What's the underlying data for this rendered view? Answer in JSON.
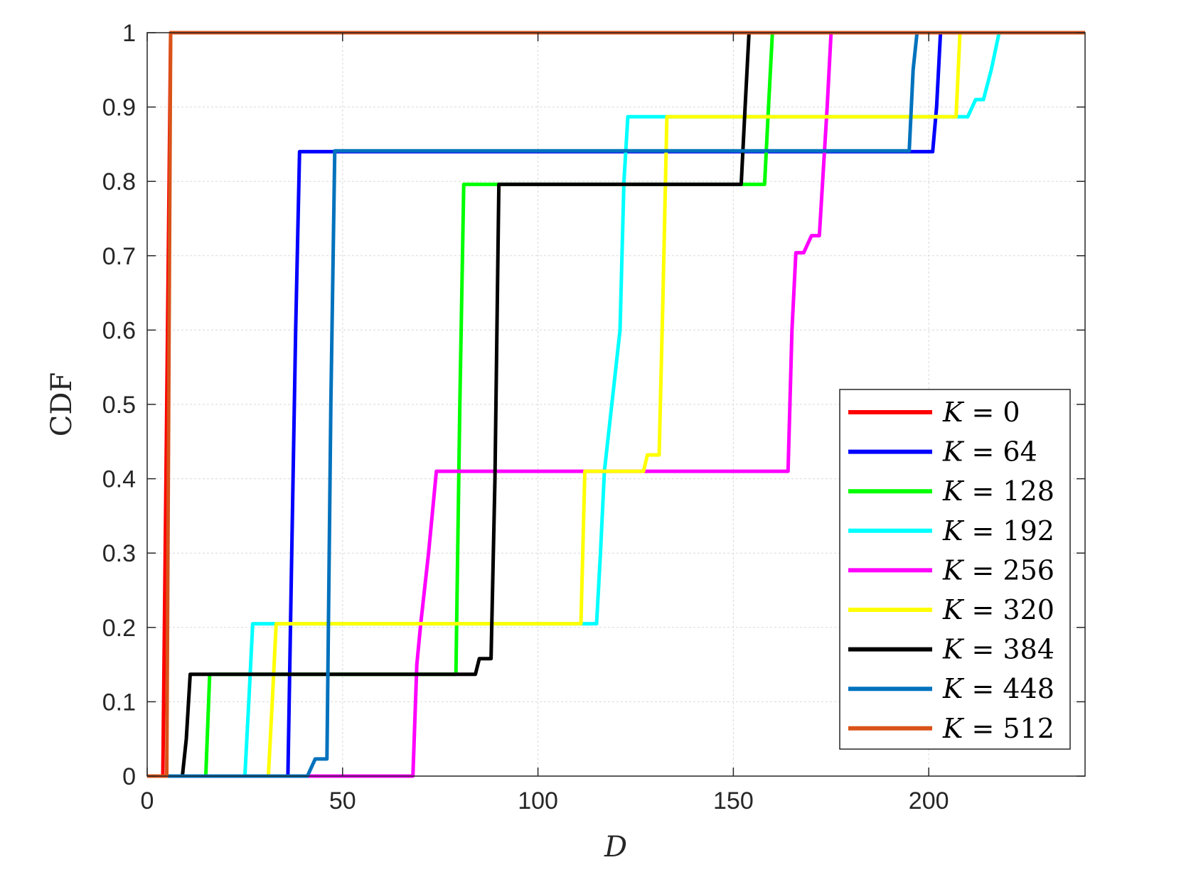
{
  "chart_data": {
    "type": "line",
    "title": "",
    "xlabel": "D",
    "ylabel": "CDF",
    "xlim": [
      0,
      240
    ],
    "ylim": [
      0,
      1
    ],
    "xticks": [
      "0",
      "50",
      "100",
      "150",
      "200"
    ],
    "xtick_values": [
      0,
      50,
      100,
      150,
      200
    ],
    "yticks": [
      "0",
      "0.1",
      "0.2",
      "0.3",
      "0.4",
      "0.5",
      "0.6",
      "0.7",
      "0.8",
      "0.9",
      "1"
    ],
    "ytick_values": [
      0,
      0.1,
      0.2,
      0.3,
      0.4,
      0.5,
      0.6,
      0.7,
      0.8,
      0.9,
      1
    ],
    "grid": true,
    "legend_position": "lower-right",
    "series": [
      {
        "name": "K = 0",
        "var": "K",
        "value": "0",
        "color": "#ff0000",
        "points": [
          [
            0,
            0
          ],
          [
            4,
            0
          ],
          [
            6,
            1
          ],
          [
            240,
            1
          ]
        ]
      },
      {
        "name": "K = 64",
        "var": "K",
        "value": "64",
        "color": "#0000ff",
        "points": [
          [
            0,
            0
          ],
          [
            36,
            0
          ],
          [
            37,
            0.3
          ],
          [
            38,
            0.6
          ],
          [
            39,
            0.84
          ],
          [
            201,
            0.84
          ],
          [
            202,
            0.9
          ],
          [
            203,
            1
          ],
          [
            240,
            1
          ]
        ]
      },
      {
        "name": "K = 128",
        "var": "K",
        "value": "128",
        "color": "#00ff00",
        "points": [
          [
            0,
            0
          ],
          [
            15,
            0
          ],
          [
            16,
            0.137
          ],
          [
            79,
            0.137
          ],
          [
            80,
            0.5
          ],
          [
            81,
            0.796
          ],
          [
            158,
            0.796
          ],
          [
            159,
            0.9
          ],
          [
            160,
            1
          ],
          [
            240,
            1
          ]
        ]
      },
      {
        "name": "K = 192",
        "var": "K",
        "value": "192",
        "color": "#00ffff",
        "points": [
          [
            0,
            0
          ],
          [
            25,
            0
          ],
          [
            26,
            0.1
          ],
          [
            27,
            0.205
          ],
          [
            115,
            0.205
          ],
          [
            116,
            0.3
          ],
          [
            117,
            0.41
          ],
          [
            121,
            0.6
          ],
          [
            122,
            0.8
          ],
          [
            123,
            0.887
          ],
          [
            210,
            0.887
          ],
          [
            212,
            0.91
          ],
          [
            214,
            0.91
          ],
          [
            216,
            0.95
          ],
          [
            218,
            1
          ],
          [
            240,
            1
          ]
        ]
      },
      {
        "name": "K = 256",
        "var": "K",
        "value": "256",
        "color": "#ff00ff",
        "points": [
          [
            0,
            0
          ],
          [
            68,
            0
          ],
          [
            69,
            0.15
          ],
          [
            70,
            0.205
          ],
          [
            72,
            0.3
          ],
          [
            74,
            0.41
          ],
          [
            164,
            0.41
          ],
          [
            165,
            0.6
          ],
          [
            166,
            0.704
          ],
          [
            168,
            0.704
          ],
          [
            170,
            0.727
          ],
          [
            172,
            0.727
          ],
          [
            174,
            0.9
          ],
          [
            175,
            1
          ],
          [
            240,
            1
          ]
        ]
      },
      {
        "name": "K = 320",
        "var": "K",
        "value": "320",
        "color": "#ffff00",
        "points": [
          [
            0,
            0
          ],
          [
            31,
            0
          ],
          [
            32,
            0.1
          ],
          [
            33,
            0.205
          ],
          [
            111,
            0.205
          ],
          [
            112,
            0.41
          ],
          [
            127,
            0.41
          ],
          [
            128,
            0.432
          ],
          [
            131,
            0.432
          ],
          [
            132,
            0.65
          ],
          [
            133,
            0.887
          ],
          [
            207,
            0.887
          ],
          [
            208,
            1
          ],
          [
            240,
            1
          ]
        ]
      },
      {
        "name": "K = 384",
        "var": "K",
        "value": "384",
        "color": "#000000",
        "points": [
          [
            0,
            0
          ],
          [
            9,
            0
          ],
          [
            10,
            0.05
          ],
          [
            11,
            0.137
          ],
          [
            84,
            0.137
          ],
          [
            85,
            0.158
          ],
          [
            88,
            0.158
          ],
          [
            89,
            0.4
          ],
          [
            90,
            0.796
          ],
          [
            152,
            0.796
          ],
          [
            153,
            0.9
          ],
          [
            154,
            1
          ],
          [
            240,
            1
          ]
        ]
      },
      {
        "name": "K = 448",
        "var": "K",
        "value": "448",
        "color": "#0072bd",
        "points": [
          [
            0,
            0
          ],
          [
            41,
            0
          ],
          [
            43,
            0.023
          ],
          [
            46,
            0.023
          ],
          [
            47,
            0.5
          ],
          [
            48,
            0.841
          ],
          [
            195,
            0.841
          ],
          [
            196,
            0.95
          ],
          [
            197,
            1
          ],
          [
            240,
            1
          ]
        ]
      },
      {
        "name": "K = 512",
        "var": "K",
        "value": "512",
        "color": "#d95319",
        "points": [
          [
            0,
            0
          ],
          [
            5,
            0
          ],
          [
            6,
            1
          ],
          [
            240,
            1
          ]
        ]
      }
    ]
  }
}
